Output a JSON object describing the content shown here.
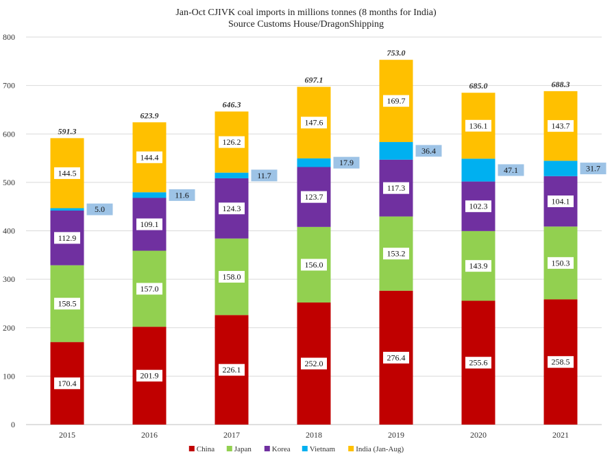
{
  "chart_data": {
    "type": "bar",
    "stacked": true,
    "title": "Jan-Oct CJIVK coal imports in millions tonnes (8 months for India)",
    "subtitle": "Source Customs House/DragonShipping",
    "xlabel": "",
    "ylabel": "",
    "ylim": [
      0,
      800
    ],
    "yticks": [
      0,
      100,
      200,
      300,
      400,
      500,
      600,
      700,
      800
    ],
    "grid": true,
    "legend_position": "bottom",
    "categories": [
      "2015",
      "2016",
      "2017",
      "2018",
      "2019",
      "2020",
      "2021"
    ],
    "series": [
      {
        "name": "China",
        "color": "#c00000",
        "values": [
          170.4,
          201.9,
          226.1,
          252.0,
          276.4,
          255.6,
          258.5
        ]
      },
      {
        "name": "Japan",
        "color": "#92d050",
        "values": [
          158.5,
          157.0,
          158.0,
          156.0,
          153.2,
          143.9,
          150.3
        ]
      },
      {
        "name": "Korea",
        "color": "#7030a0",
        "values": [
          112.9,
          109.1,
          124.3,
          123.7,
          117.3,
          102.3,
          104.1
        ]
      },
      {
        "name": "Vietnam",
        "color": "#00b0f0",
        "values": [
          5.0,
          11.6,
          11.7,
          17.9,
          36.4,
          47.1,
          31.7
        ]
      },
      {
        "name": "India (Jan-Aug)",
        "color": "#ffc000",
        "values": [
          144.5,
          144.4,
          126.2,
          147.6,
          169.7,
          136.1,
          143.7
        ]
      }
    ],
    "totals": [
      591.3,
      623.9,
      646.3,
      697.1,
      753.0,
      685.0,
      688.3
    ]
  }
}
